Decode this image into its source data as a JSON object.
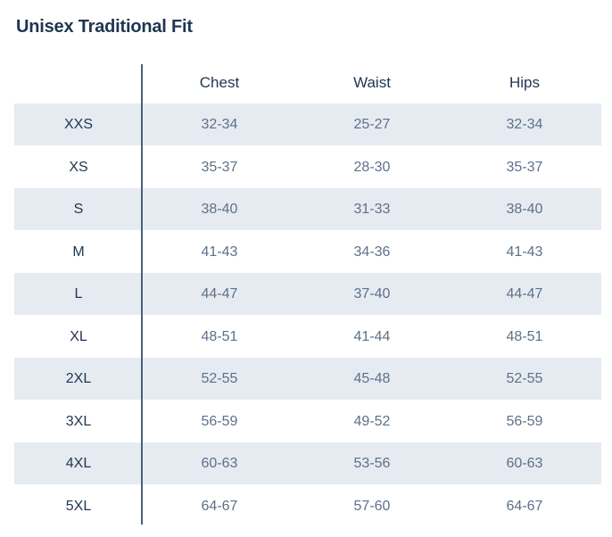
{
  "title": "Unisex Traditional Fit",
  "columns": [
    "",
    "Chest",
    "Waist",
    "Hips"
  ],
  "rows": [
    {
      "size": "XXS",
      "chest": "32-34",
      "waist": "25-27",
      "hips": "32-34"
    },
    {
      "size": "XS",
      "chest": "35-37",
      "waist": "28-30",
      "hips": "35-37"
    },
    {
      "size": "S",
      "chest": "38-40",
      "waist": "31-33",
      "hips": "38-40"
    },
    {
      "size": "M",
      "chest": "41-43",
      "waist": "34-36",
      "hips": "41-43"
    },
    {
      "size": "L",
      "chest": "44-47",
      "waist": "37-40",
      "hips": "44-47"
    },
    {
      "size": "XL",
      "chest": "48-51",
      "waist": "41-44",
      "hips": "48-51"
    },
    {
      "size": "2XL",
      "chest": "52-55",
      "waist": "45-48",
      "hips": "52-55"
    },
    {
      "size": "3XL",
      "chest": "56-59",
      "waist": "49-52",
      "hips": "56-59"
    },
    {
      "size": "4XL",
      "chest": "60-63",
      "waist": "53-56",
      "hips": "60-63"
    },
    {
      "size": "5XL",
      "chest": "64-67",
      "waist": "57-60",
      "hips": "64-67"
    }
  ],
  "colors": {
    "heading": "#1f3550",
    "value_text": "#5e7088",
    "row_shade": "#e6ebf2",
    "divider": "#4a6078"
  }
}
